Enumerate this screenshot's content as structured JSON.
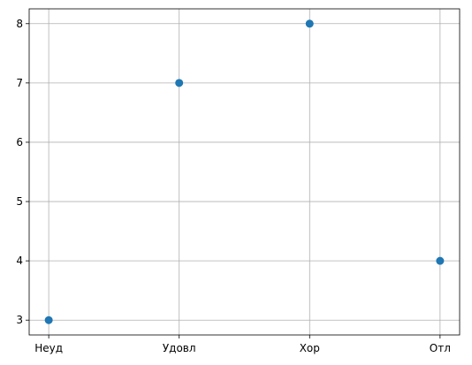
{
  "chart_data": {
    "type": "scatter",
    "categories": [
      "Неуд",
      "Удовл",
      "Хор",
      "Отл"
    ],
    "values": [
      3,
      7,
      8,
      4
    ],
    "title": "",
    "xlabel": "",
    "ylabel": "",
    "ylim": [
      2.75,
      8.25
    ],
    "yticks": [
      "3",
      "4",
      "5",
      "6",
      "7",
      "8"
    ],
    "grid": true,
    "marker_color": "#1f77b4"
  }
}
